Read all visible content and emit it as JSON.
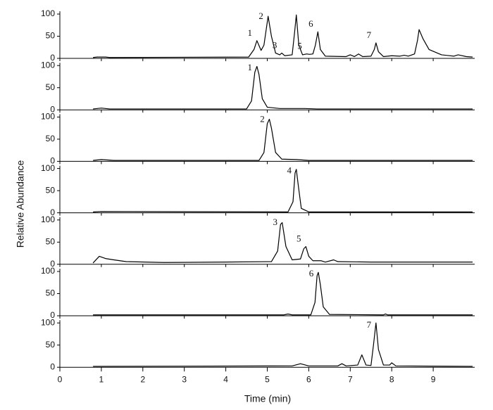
{
  "chart_data": [
    {
      "type": "line",
      "color": "#000000",
      "xlim": [
        0,
        10
      ],
      "ylim": [
        0,
        100
      ],
      "yticks": [
        0,
        50,
        100
      ],
      "x": [
        0.8,
        0.9,
        1.1,
        1.2,
        4.55,
        4.68,
        4.75,
        4.85,
        4.92,
        5.02,
        5.1,
        5.2,
        5.3,
        5.35,
        5.42,
        5.6,
        5.66,
        5.7,
        5.76,
        5.85,
        5.95,
        6.02,
        6.1,
        6.16,
        6.22,
        6.28,
        6.4,
        6.9,
        7.0,
        7.1,
        7.2,
        7.3,
        7.5,
        7.58,
        7.62,
        7.68,
        7.8,
        8.0,
        8.2,
        8.3,
        8.4,
        8.55,
        8.62,
        8.66,
        8.75,
        8.9,
        9.2,
        9.5,
        9.6,
        9.8,
        9.95
      ],
      "values": [
        2,
        3,
        3,
        2,
        3,
        20,
        40,
        18,
        30,
        95,
        50,
        12,
        8,
        12,
        6,
        8,
        60,
        98,
        30,
        8,
        10,
        9,
        10,
        30,
        60,
        20,
        5,
        4,
        8,
        4,
        10,
        4,
        5,
        20,
        35,
        15,
        4,
        6,
        5,
        7,
        5,
        10,
        40,
        65,
        45,
        20,
        8,
        5,
        8,
        4,
        3
      ],
      "annotations": [
        {
          "x": 4.75,
          "label": "1"
        },
        {
          "x": 5.02,
          "label": "2"
        },
        {
          "x": 5.35,
          "label": "3"
        },
        {
          "x": 5.95,
          "label": "5"
        },
        {
          "x": 6.22,
          "label": "6"
        },
        {
          "x": 7.62,
          "label": "7"
        }
      ]
    },
    {
      "type": "line",
      "color": "#000000",
      "xlim": [
        0,
        10
      ],
      "ylim": [
        0,
        100
      ],
      "yticks": [
        0,
        50,
        100
      ],
      "x": [
        0.8,
        1.0,
        1.2,
        4.5,
        4.62,
        4.7,
        4.75,
        4.8,
        4.88,
        5.0,
        5.3,
        5.9,
        6.2,
        9.95
      ],
      "values": [
        2,
        4,
        2,
        2,
        20,
        85,
        98,
        80,
        25,
        6,
        3,
        3,
        2,
        2
      ],
      "annotations": [
        {
          "x": 4.75,
          "label": "1"
        }
      ]
    },
    {
      "type": "line",
      "color": "#000000",
      "xlim": [
        0,
        10
      ],
      "ylim": [
        0,
        100
      ],
      "yticks": [
        0,
        50,
        100
      ],
      "x": [
        0.8,
        1.0,
        1.3,
        4.8,
        4.92,
        5.0,
        5.05,
        5.1,
        5.2,
        5.35,
        5.7,
        6.0,
        9.95
      ],
      "values": [
        2,
        4,
        2,
        2,
        20,
        85,
        95,
        75,
        20,
        5,
        4,
        2,
        2
      ],
      "annotations": [
        {
          "x": 5.05,
          "label": "2"
        }
      ]
    },
    {
      "type": "line",
      "color": "#000000",
      "xlim": [
        0,
        10
      ],
      "ylim": [
        0,
        100
      ],
      "yticks": [
        0,
        50,
        100
      ],
      "x": [
        0.8,
        1.0,
        5.5,
        5.62,
        5.67,
        5.7,
        5.75,
        5.82,
        6.0,
        9.95
      ],
      "values": [
        2,
        3,
        2,
        25,
        90,
        98,
        60,
        10,
        2,
        2
      ],
      "annotations": [
        {
          "x": 5.7,
          "label": "4"
        }
      ]
    },
    {
      "type": "line",
      "color": "#000000",
      "xlim": [
        0,
        10
      ],
      "ylim": [
        0,
        100
      ],
      "yticks": [
        0,
        50,
        100
      ],
      "x": [
        0.8,
        0.95,
        1.1,
        1.3,
        1.6,
        2.5,
        4.0,
        5.1,
        5.25,
        5.32,
        5.36,
        5.45,
        5.6,
        5.8,
        5.88,
        5.93,
        6.0,
        6.1,
        6.3,
        6.4,
        6.6,
        6.7,
        7.5,
        9.95
      ],
      "values": [
        3,
        18,
        13,
        10,
        6,
        4,
        5,
        6,
        30,
        90,
        94,
        40,
        10,
        12,
        35,
        40,
        18,
        8,
        8,
        5,
        10,
        6,
        5,
        5
      ],
      "annotations": [
        {
          "x": 5.36,
          "label": "3"
        },
        {
          "x": 5.93,
          "label": "5"
        }
      ]
    },
    {
      "type": "line",
      "color": "#000000",
      "xlim": [
        0,
        10
      ],
      "ylim": [
        0,
        100
      ],
      "yticks": [
        0,
        50,
        100
      ],
      "x": [
        0.8,
        5.4,
        5.5,
        5.6,
        6.05,
        6.15,
        6.2,
        6.23,
        6.28,
        6.35,
        6.5,
        7.8,
        7.85,
        7.9,
        9.95
      ],
      "values": [
        2,
        2,
        4,
        2,
        2,
        30,
        90,
        98,
        70,
        20,
        3,
        2,
        4,
        2,
        2
      ],
      "annotations": [
        {
          "x": 6.23,
          "label": "6"
        }
      ]
    },
    {
      "type": "line",
      "color": "#000000",
      "xlim": [
        0,
        10
      ],
      "ylim": [
        0,
        100
      ],
      "yticks": [
        0,
        50,
        100
      ],
      "xticks": [
        0,
        1,
        2,
        3,
        4,
        5,
        6,
        7,
        8,
        9
      ],
      "x": [
        0.8,
        5.6,
        5.8,
        6.0,
        6.7,
        6.8,
        6.9,
        7.18,
        7.28,
        7.38,
        7.5,
        7.56,
        7.62,
        7.68,
        7.8,
        7.95,
        8.0,
        8.1,
        9.95
      ],
      "values": [
        2,
        3,
        8,
        3,
        3,
        8,
        3,
        5,
        28,
        5,
        4,
        50,
        100,
        40,
        5,
        5,
        10,
        3,
        2
      ],
      "annotations": [
        {
          "x": 7.62,
          "label": "7"
        }
      ]
    }
  ],
  "xlabel": "Time (min)",
  "ylabel": "Relative Abundance"
}
